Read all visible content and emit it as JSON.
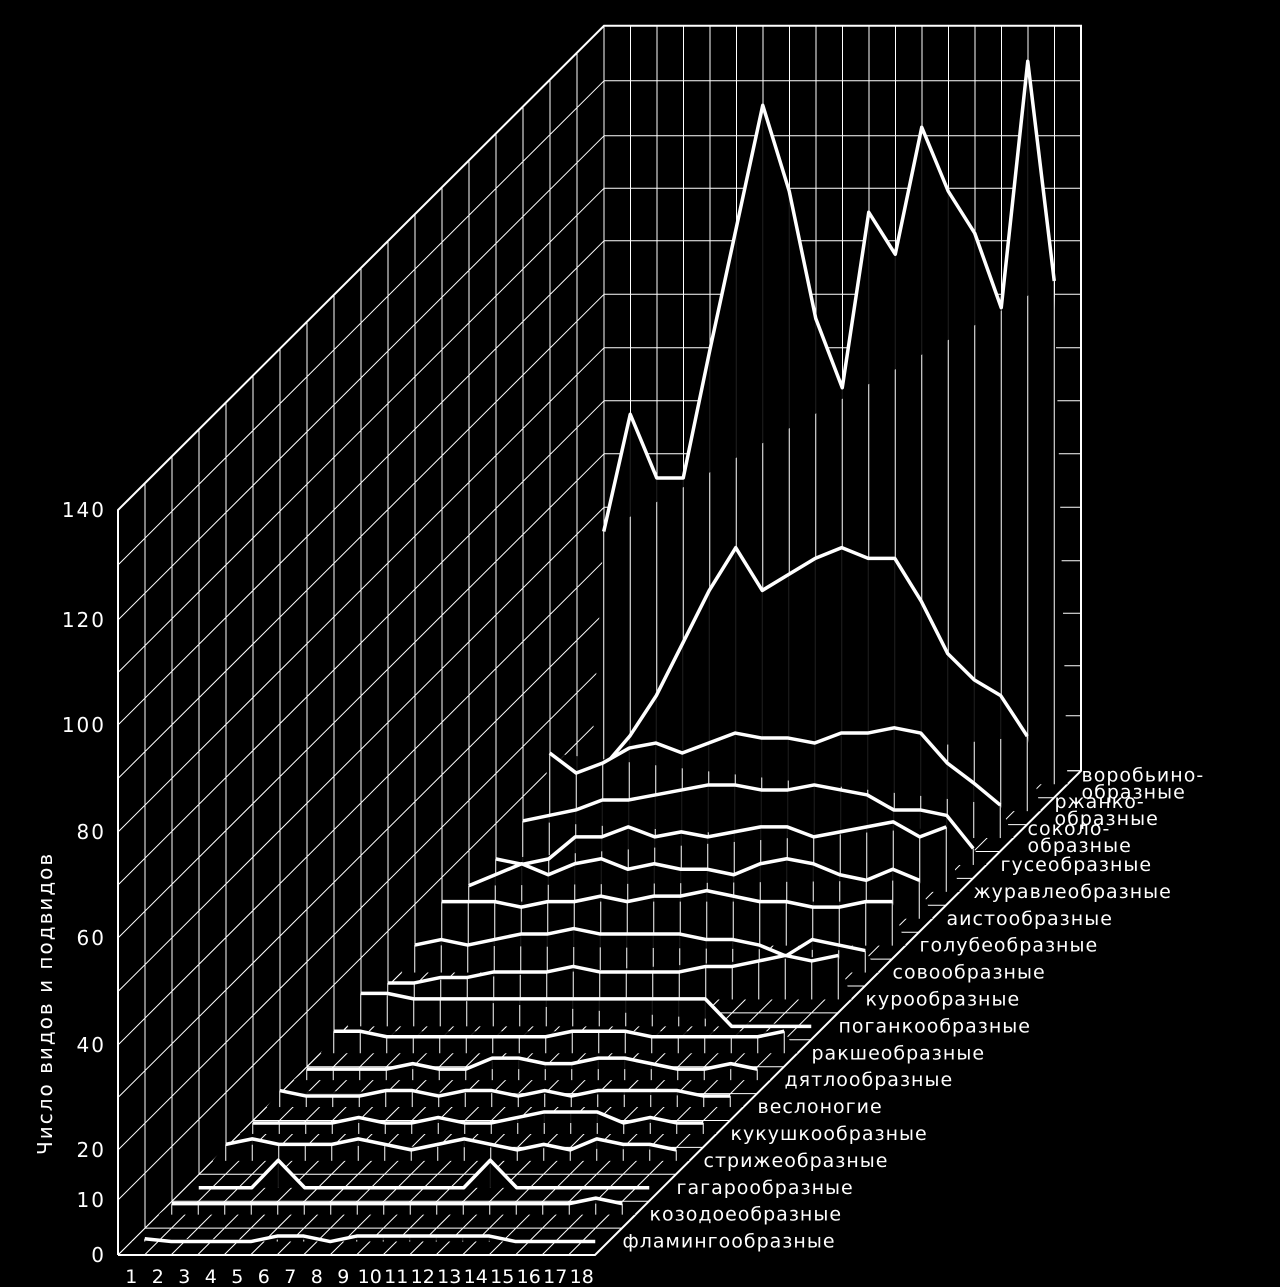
{
  "chart_data": {
    "type": "area",
    "ylabel": "Число видов и подвидов",
    "yticks": [
      0,
      10,
      20,
      40,
      60,
      80,
      100,
      120,
      140
    ],
    "ylim": [
      0,
      140
    ],
    "xticks": [
      "1",
      "2",
      "3",
      "4",
      "5",
      "6",
      "7",
      "8",
      "9",
      "10",
      "11",
      "12",
      "13",
      "14",
      "15",
      "16",
      "17",
      "18"
    ],
    "orders": [
      {
        "name": "фламингообразные",
        "values": [
          0.5,
          0,
          0,
          0,
          0,
          1,
          1,
          0,
          1,
          1,
          1,
          1,
          1,
          1,
          0,
          0,
          0,
          0
        ]
      },
      {
        "name": "козодоеобразные",
        "values": [
          2,
          2,
          2,
          2,
          2,
          2,
          2,
          2,
          2,
          2,
          2,
          2,
          2,
          2,
          2,
          2,
          3,
          2
        ]
      },
      {
        "name": "гагарообразные",
        "values": [
          0,
          0,
          0,
          5,
          0,
          0,
          0,
          0,
          0,
          0,
          0,
          5,
          0,
          0,
          0,
          0,
          0,
          0
        ]
      },
      {
        "name": "стрижеобразные",
        "values": [
          3,
          4,
          3,
          3,
          3,
          4,
          3,
          2,
          3,
          4,
          3,
          2,
          3,
          2,
          4,
          3,
          3,
          2
        ]
      },
      {
        "name": "кукушкообразные",
        "values": [
          2,
          2,
          2,
          2,
          3,
          2,
          2,
          3,
          2,
          2,
          3,
          4,
          4,
          4,
          2,
          3,
          2,
          2
        ]
      },
      {
        "name": "веслоногие",
        "values": [
          3,
          2,
          2,
          2,
          3,
          3,
          2,
          3,
          3,
          2,
          3,
          2,
          3,
          3,
          3,
          3,
          2,
          2
        ]
      },
      {
        "name": "дятлообразные",
        "values": [
          2,
          2,
          2,
          2,
          3,
          2,
          2,
          4,
          4,
          3,
          3,
          4,
          4,
          3,
          2,
          2,
          3,
          2
        ]
      },
      {
        "name": "ракшеобразные",
        "values": [
          4,
          4,
          3,
          3,
          3,
          3,
          3,
          3,
          3,
          4,
          4,
          4,
          3,
          3,
          3,
          3,
          3,
          4
        ]
      },
      {
        "name": "поганкообразные",
        "values": [
          6,
          6,
          5,
          5,
          5,
          5,
          5,
          5,
          5,
          5,
          5,
          5,
          5,
          5,
          0,
          0,
          0,
          0
        ]
      },
      {
        "name": "курообразные",
        "values": [
          3,
          3,
          4,
          4,
          5,
          5,
          5,
          6,
          5,
          5,
          5,
          5,
          6,
          6,
          7,
          8,
          7,
          8
        ]
      },
      {
        "name": "совообразные",
        "values": [
          5,
          6,
          5,
          6,
          7,
          7,
          8,
          7,
          7,
          7,
          7,
          6,
          6,
          5,
          3,
          6,
          5,
          4
        ]
      },
      {
        "name": "голубеобразные",
        "values": [
          8,
          8,
          8,
          7,
          8,
          8,
          9,
          8,
          9,
          9,
          10,
          9,
          8,
          8,
          7,
          7,
          8,
          8
        ]
      },
      {
        "name": "аистообразные",
        "values": [
          6,
          8,
          10,
          8,
          10,
          11,
          9,
          10,
          9,
          9,
          8,
          10,
          11,
          10,
          8,
          7,
          9,
          7
        ]
      },
      {
        "name": "журавлеобразные",
        "values": [
          6,
          5,
          6,
          10,
          10,
          12,
          10,
          11,
          10,
          11,
          12,
          12,
          10,
          11,
          12,
          13,
          10,
          12
        ]
      },
      {
        "name": "гусеобразные",
        "values": [
          8,
          9,
          10,
          12,
          12,
          13,
          14,
          15,
          15,
          14,
          14,
          15,
          14,
          13,
          10,
          10,
          9,
          3
        ]
      },
      {
        "name": "соколо-\nобразные",
        "values": [
          16,
          12,
          14,
          17,
          18,
          16,
          18,
          20,
          19,
          19,
          18,
          20,
          20,
          21,
          20,
          14,
          10,
          6
        ]
      },
      {
        "name": "ржанко-\nобразные",
        "values": [
          5,
          8,
          14,
          22,
          32,
          42,
          50,
          42,
          45,
          48,
          50,
          48,
          48,
          40,
          30,
          25,
          22,
          14
        ]
      },
      {
        "name": "воробьино-\nобразные",
        "values": [
          48,
          70,
          58,
          58,
          82,
          105,
          128,
          112,
          88,
          75,
          108,
          100,
          124,
          112,
          104,
          90,
          136,
          95
        ]
      }
    ]
  }
}
